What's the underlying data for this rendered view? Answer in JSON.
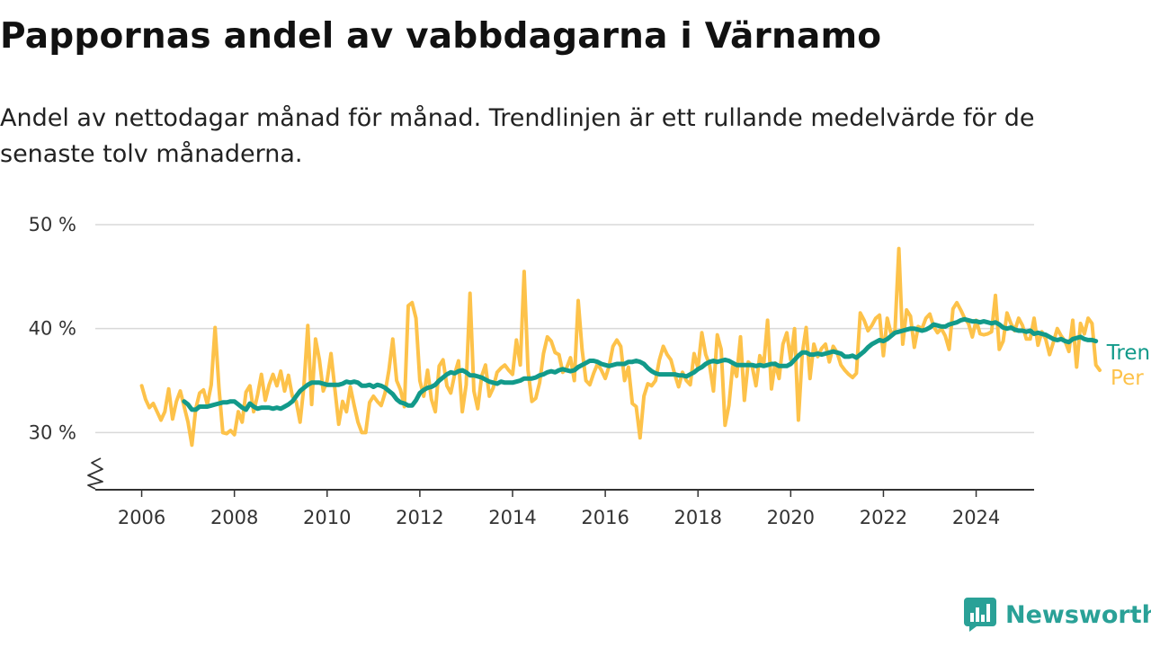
{
  "header": {
    "title": "Pappornas andel av vabbdagarna i Värnamo",
    "subtitle": "Andel av nettodagar månad för månad. Trendlinjen är ett rullande medelvärde för de senaste tolv månaderna."
  },
  "brand": {
    "name": "Newsworthy",
    "icon": "bar-chart-logo-icon",
    "color": "#2aa197"
  },
  "chart_data": {
    "type": "line",
    "title": "Pappornas andel av vabbdagarna i Värnamo",
    "ylim": [
      24.5,
      50
    ],
    "y_ticks": [
      30,
      40,
      50
    ],
    "y_tick_labels": [
      "30 %",
      "40 %",
      "50 %"
    ],
    "x_ticks": [
      2006,
      2008,
      2010,
      2012,
      2014,
      2016,
      2018,
      2020,
      2022,
      2024
    ],
    "xlim": [
      2005.0,
      2025.25
    ],
    "grid": "horizontal",
    "y_axis_break": true,
    "legend": "inline-right",
    "series": [
      {
        "name": "Per månad",
        "color": "#fdc24a",
        "x_start": 2006.0,
        "x_step_months": 1,
        "values": [
          34.5,
          33.2,
          32.4,
          32.8,
          32.0,
          31.2,
          32.0,
          34.2,
          31.3,
          33.0,
          34.0,
          32.5,
          31.0,
          28.8,
          32.3,
          33.8,
          34.1,
          32.7,
          34.6,
          40.1,
          34.3,
          30.0,
          29.9,
          30.2,
          29.8,
          32.0,
          31.0,
          33.9,
          34.5,
          32.0,
          33.6,
          35.6,
          33.1,
          34.6,
          35.6,
          34.5,
          35.9,
          34.0,
          35.5,
          33.5,
          33.0,
          31.0,
          34.5,
          40.3,
          32.7,
          39.0,
          37.0,
          34.0,
          35.0,
          37.6,
          34.2,
          30.8,
          33.0,
          32.0,
          34.4,
          32.6,
          31.0,
          30.0,
          30.0,
          32.9,
          33.5,
          33.0,
          32.6,
          33.8,
          36.0,
          39.0,
          35.0,
          34.1,
          32.5,
          42.2,
          42.5,
          41.0,
          35.0,
          33.5,
          36.0,
          33.2,
          32.0,
          36.4,
          37.0,
          34.5,
          33.8,
          35.6,
          36.9,
          32.0,
          34.6,
          43.4,
          34.0,
          32.3,
          35.4,
          36.5,
          33.5,
          34.3,
          35.8,
          36.2,
          36.5,
          36.0,
          35.6,
          38.9,
          36.5,
          45.5,
          36.0,
          33.0,
          33.3,
          34.8,
          37.6,
          39.2,
          38.8,
          37.7,
          37.5,
          35.8,
          36.2,
          37.2,
          35.0,
          42.7,
          38.0,
          35.0,
          34.6,
          35.7,
          36.6,
          36.0,
          35.2,
          36.4,
          38.3,
          38.9,
          38.3,
          35.0,
          36.3,
          32.8,
          32.5,
          29.5,
          33.5,
          34.7,
          34.5,
          35.0,
          37.0,
          38.3,
          37.5,
          37.0,
          35.6,
          34.4,
          35.8,
          35.0,
          34.6,
          37.6,
          36.2,
          39.6,
          37.5,
          36.5,
          34.0,
          39.4,
          38.0,
          30.7,
          32.6,
          36.5,
          35.4,
          39.2,
          33.1,
          36.8,
          36.4,
          34.5,
          37.4,
          36.5,
          40.8,
          34.2,
          36.7,
          35.2,
          38.5,
          39.6,
          37.0,
          40.0,
          31.2,
          37.6,
          40.1,
          35.2,
          38.5,
          37.3,
          38.1,
          38.5,
          36.8,
          38.3,
          37.7,
          36.5,
          36.0,
          35.6,
          35.3,
          35.7,
          41.5,
          40.8,
          39.8,
          40.3,
          41.0,
          41.3,
          37.4,
          41.0,
          39.5,
          39.8,
          47.7,
          38.5,
          41.8,
          41.2,
          38.2,
          40.2,
          40.0,
          41.0,
          41.4,
          40.2,
          39.6,
          40.0,
          39.3,
          38.0,
          41.9,
          42.5,
          41.8,
          41.0,
          40.5,
          39.2,
          40.8,
          39.5,
          39.4,
          39.5,
          39.7,
          43.2,
          38.0,
          38.8,
          41.5,
          40.5,
          39.8,
          41.0,
          40.3,
          39.0,
          39.0,
          41.0,
          38.4,
          39.7,
          39.0,
          37.5,
          38.7,
          40.0,
          39.3,
          38.8,
          37.8,
          40.8,
          36.3,
          40.5,
          39.5,
          41.0,
          40.5,
          36.5,
          36.0
        ]
      },
      {
        "name": "Trend",
        "color": "#129a8a",
        "x_start": 2006.9167,
        "x_step_months": 1,
        "values": [
          33.0,
          32.7,
          32.2,
          32.2,
          32.5,
          32.5,
          32.5,
          32.6,
          32.7,
          32.8,
          32.9,
          32.9,
          33.0,
          33.0,
          32.7,
          32.4,
          32.2,
          32.8,
          32.5,
          32.3,
          32.4,
          32.4,
          32.4,
          32.3,
          32.4,
          32.3,
          32.5,
          32.7,
          33.0,
          33.5,
          34.0,
          34.3,
          34.6,
          34.8,
          34.8,
          34.8,
          34.7,
          34.6,
          34.6,
          34.6,
          34.6,
          34.7,
          34.9,
          34.8,
          34.9,
          34.8,
          34.5,
          34.5,
          34.6,
          34.4,
          34.6,
          34.5,
          34.3,
          34.0,
          33.7,
          33.2,
          32.9,
          32.8,
          32.6,
          32.6,
          33.1,
          33.8,
          34.1,
          34.3,
          34.4,
          34.6,
          35.0,
          35.3,
          35.6,
          35.8,
          35.7,
          35.9,
          36.0,
          35.8,
          35.5,
          35.5,
          35.4,
          35.3,
          35.1,
          34.9,
          34.8,
          34.7,
          34.9,
          34.8,
          34.8,
          34.8,
          34.9,
          35.0,
          35.2,
          35.2,
          35.2,
          35.3,
          35.5,
          35.6,
          35.8,
          35.9,
          35.8,
          36.0,
          36.1,
          36.0,
          35.9,
          36.0,
          36.3,
          36.5,
          36.7,
          36.9,
          36.9,
          36.8,
          36.6,
          36.5,
          36.4,
          36.5,
          36.6,
          36.6,
          36.6,
          36.8,
          36.8,
          36.9,
          36.8,
          36.6,
          36.2,
          35.9,
          35.7,
          35.6,
          35.6,
          35.6,
          35.6,
          35.6,
          35.5,
          35.5,
          35.4,
          35.6,
          35.8,
          36.1,
          36.3,
          36.6,
          36.8,
          36.9,
          36.8,
          36.9,
          37.0,
          36.9,
          36.7,
          36.5,
          36.5,
          36.5,
          36.5,
          36.5,
          36.4,
          36.5,
          36.4,
          36.5,
          36.6,
          36.6,
          36.4,
          36.4,
          36.4,
          36.6,
          37.0,
          37.4,
          37.7,
          37.7,
          37.5,
          37.5,
          37.6,
          37.5,
          37.6,
          37.7,
          37.8,
          37.7,
          37.6,
          37.3,
          37.3,
          37.4,
          37.2,
          37.5,
          37.8,
          38.2,
          38.5,
          38.7,
          38.9,
          38.8,
          39.0,
          39.3,
          39.6,
          39.7,
          39.8,
          39.9,
          40.0,
          40.0,
          39.9,
          39.8,
          39.9,
          40.1,
          40.4,
          40.3,
          40.2,
          40.2,
          40.4,
          40.5,
          40.6,
          40.8,
          40.9,
          40.8,
          40.7,
          40.7,
          40.6,
          40.7,
          40.6,
          40.5,
          40.6,
          40.4,
          40.1,
          40.0,
          40.1,
          39.9,
          39.8,
          39.8,
          39.7,
          39.8,
          39.5,
          39.6,
          39.5,
          39.4,
          39.2,
          39.0,
          38.9,
          39.0,
          38.8,
          38.7,
          39.0,
          39.1,
          39.2,
          39.0,
          38.9,
          38.9,
          38.8
        ]
      }
    ]
  }
}
